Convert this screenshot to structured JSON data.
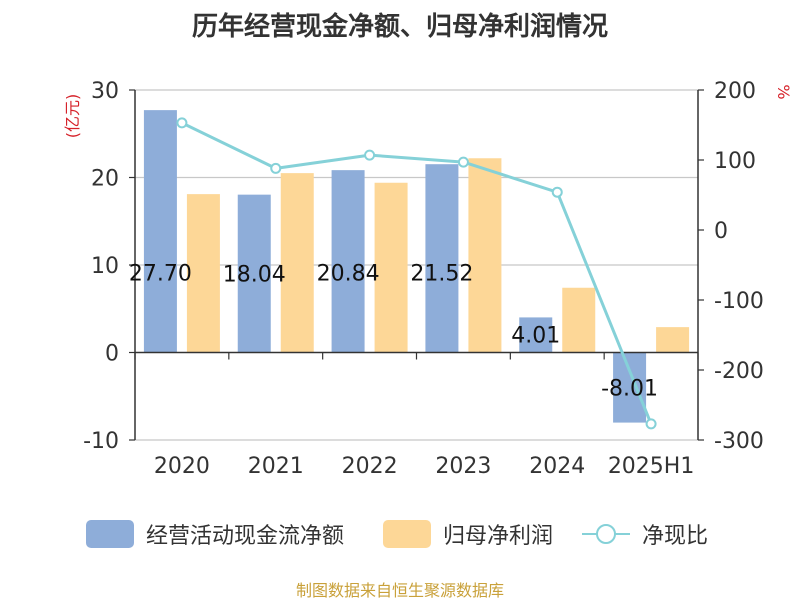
{
  "title": "历年经营现金净额、归母净利润情况",
  "left_axis_unit": "(亿元)",
  "right_axis_unit": "%",
  "source": "制图数据来自恒生聚源数据库",
  "colors": {
    "cash_flow": "#8eadd9",
    "net_profit": "#fdd797",
    "ratio": "#85d1d8",
    "axis_text": "#333333",
    "unit_text": "#d6222a",
    "grid": "#c8c8c8",
    "source": "#c9a13a"
  },
  "legend": [
    {
      "label": "经营活动现金流净额",
      "kind": "bar",
      "color": "#8eadd9"
    },
    {
      "label": "归母净利润",
      "kind": "bar",
      "color": "#fdd797"
    },
    {
      "label": "净现比",
      "kind": "line",
      "color": "#85d1d8"
    }
  ],
  "chart_data": {
    "type": "bar",
    "categories": [
      "2020",
      "2021",
      "2022",
      "2023",
      "2024",
      "2025H1"
    ],
    "series": [
      {
        "name": "经营活动现金流净额",
        "type": "bar",
        "axis": "left",
        "values": [
          27.7,
          18.04,
          20.84,
          21.52,
          4.01,
          -8.01
        ],
        "labels": [
          "27.70",
          "18.04",
          "20.84",
          "21.52",
          "4.01",
          "-8.01"
        ]
      },
      {
        "name": "归母净利润",
        "type": "bar",
        "axis": "left",
        "values": [
          18.1,
          20.5,
          19.4,
          22.2,
          7.4,
          2.9
        ]
      },
      {
        "name": "净现比",
        "type": "line",
        "axis": "right",
        "values": [
          153,
          88,
          107,
          97,
          54,
          -277
        ]
      }
    ],
    "y_left": {
      "ylim": [
        -10,
        30
      ],
      "ticks": [
        30,
        20,
        10,
        0,
        -10
      ]
    },
    "y_right": {
      "ylim": [
        -300,
        200
      ],
      "ticks": [
        200,
        100,
        0,
        -100,
        -200,
        -300
      ]
    },
    "grid": true,
    "legend_position": "bottom"
  }
}
